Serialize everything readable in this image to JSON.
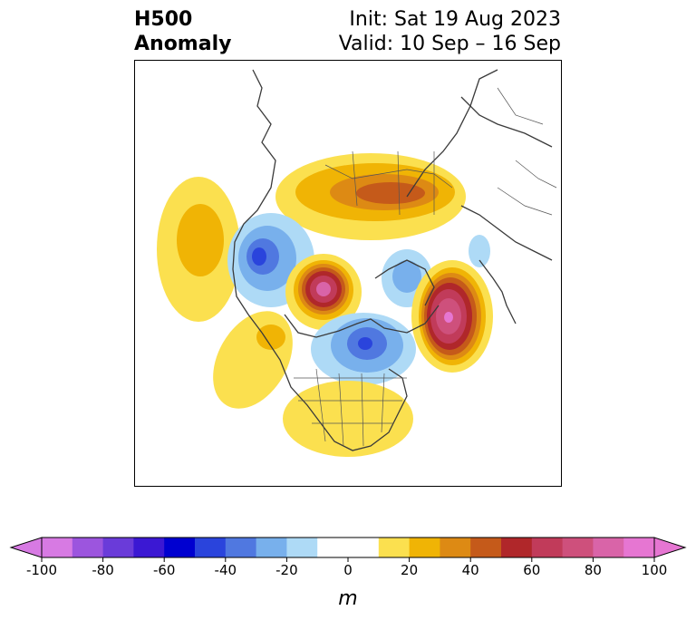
{
  "title": {
    "left_line1": "H500",
    "left_line2": "Anomaly",
    "right_line1": "Init: Sat 19 Aug 2023",
    "right_line2": "Valid: 10 Sep – 16 Sep"
  },
  "colorbar": {
    "unit": "m",
    "ticks": [
      "-100",
      "-80",
      "-60",
      "-40",
      "-20",
      "0",
      "20",
      "40",
      "60",
      "80",
      "100"
    ],
    "levels": [
      -100,
      -90,
      -80,
      -70,
      -60,
      -50,
      -40,
      -30,
      -20,
      -10,
      10,
      20,
      30,
      40,
      50,
      60,
      70,
      80,
      90,
      100
    ],
    "colors": [
      "#d77ae3",
      "#9c55de",
      "#6a3bd9",
      "#3b18d3",
      "#0000d0",
      "#2a44dc",
      "#5078e0",
      "#78b0ec",
      "#aedaf6",
      "#ffffff",
      "#ffffff",
      "#fbe04f",
      "#f0b405",
      "#dd8a14",
      "#c55a1a",
      "#b0272a",
      "#c13b5a",
      "#ce507c",
      "#d964a8",
      "#e676d2"
    ],
    "extend_min_color": "#d77ae3",
    "extend_max_color": "#e676d2"
  },
  "map": {
    "projection": "north-polar-stereographic",
    "field": "500 hPa geopotential height anomaly",
    "features": [
      {
        "name": "ridge-siberia",
        "sign": "positive",
        "peak": 45
      },
      {
        "name": "ridge-north-pacific",
        "sign": "positive",
        "peak": 25
      },
      {
        "name": "trough-east-siberia",
        "sign": "negative",
        "peak": -45
      },
      {
        "name": "ridge-alaska",
        "sign": "positive",
        "peak": 90
      },
      {
        "name": "ridge-north-atlantic",
        "sign": "positive",
        "peak": 95
      },
      {
        "name": "trough-hudson-bay",
        "sign": "negative",
        "peak": -45
      },
      {
        "name": "ridge-eastern-us",
        "sign": "positive",
        "peak": 20
      },
      {
        "name": "ridge-western-canada",
        "sign": "positive",
        "peak": 25
      }
    ]
  }
}
